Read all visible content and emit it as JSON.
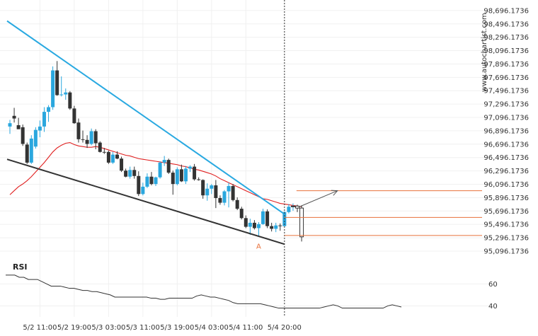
{
  "watermark": "www.autochartist.com",
  "colors": {
    "up": "#2aa7de",
    "down": "#333333",
    "resistance": "#29a9e1",
    "support": "#333333",
    "ma": "#e02020",
    "levels": "#e8703a",
    "forecast": "#555555",
    "rsi": "#333333",
    "grid": "#f0f0f0"
  },
  "chart_data": [
    {
      "type": "candlestick",
      "title": "",
      "ylim": [
        94990,
        98790
      ],
      "grid": true,
      "y_ticks": [
        "98,696.1736",
        "98,496.1736",
        "98,296.1736",
        "98,096.1736",
        "97,896.1736",
        "97,696.1736",
        "97,496.1736",
        "97,296.1736",
        "97,096.1736",
        "96,896.1736",
        "96,696.1736",
        "96,496.1736",
        "96,296.1736",
        "96,096.1736",
        "95,896.1736",
        "95,696.1736",
        "95,496.1736",
        "95,296.1736",
        "95,096.1736"
      ],
      "x_ticks": [
        "5/2 11:00",
        "5/2 19:00",
        "5/3 03:00",
        "5/3 11:00",
        "5/3 19:00",
        "5/4 03:00",
        "5/4 11:00",
        "5/4 20:00"
      ],
      "x_tick_index": [
        7,
        15,
        23,
        31,
        39,
        47,
        55,
        64
      ],
      "breakout_index": 64,
      "pattern_label": "A",
      "pattern_label_index": 58,
      "pattern_label_value": 95240,
      "levels": [
        95600,
        95330,
        96000
      ],
      "forecast": {
        "from_index": 67.5,
        "from_value": 95760,
        "to_index": 79,
        "to_value": 96000
      },
      "resistance": {
        "from_index": 0,
        "from_value": 98540,
        "to_index": 64,
        "to_value": 95650
      },
      "support": {
        "from_index": 0,
        "from_value": 96470,
        "to_index": 64,
        "to_value": 95200
      },
      "candles": [
        {
          "o": 96960,
          "h": 97060,
          "l": 96850,
          "c": 97010
        },
        {
          "o": 97120,
          "h": 97240,
          "l": 97020,
          "c": 97080
        },
        {
          "o": 96980,
          "h": 97090,
          "l": 96950,
          "c": 96920
        },
        {
          "o": 96950,
          "h": 96990,
          "l": 96670,
          "c": 96700
        },
        {
          "o": 96690,
          "h": 96720,
          "l": 96400,
          "c": 96420
        },
        {
          "o": 96420,
          "h": 96830,
          "l": 96400,
          "c": 96780
        },
        {
          "o": 96660,
          "h": 96950,
          "l": 96630,
          "c": 96910
        },
        {
          "o": 96900,
          "h": 97050,
          "l": 96800,
          "c": 96960
        },
        {
          "o": 96960,
          "h": 97250,
          "l": 96880,
          "c": 97180
        },
        {
          "o": 97180,
          "h": 97280,
          "l": 97030,
          "c": 97250
        },
        {
          "o": 97250,
          "h": 97860,
          "l": 97210,
          "c": 97800
        },
        {
          "o": 97800,
          "h": 97940,
          "l": 97420,
          "c": 97430
        },
        {
          "o": 97430,
          "h": 97710,
          "l": 97410,
          "c": 97440
        },
        {
          "o": 97440,
          "h": 97530,
          "l": 97360,
          "c": 97470
        },
        {
          "o": 97470,
          "h": 97490,
          "l": 97210,
          "c": 97230
        },
        {
          "o": 97230,
          "h": 97270,
          "l": 97000,
          "c": 97010
        },
        {
          "o": 97020,
          "h": 97080,
          "l": 96720,
          "c": 96770
        },
        {
          "o": 96770,
          "h": 96900,
          "l": 96720,
          "c": 96760
        },
        {
          "o": 96760,
          "h": 96830,
          "l": 96640,
          "c": 96700
        },
        {
          "o": 96700,
          "h": 96930,
          "l": 96680,
          "c": 96890
        },
        {
          "o": 96890,
          "h": 96920,
          "l": 96620,
          "c": 96710
        },
        {
          "o": 96720,
          "h": 96740,
          "l": 96570,
          "c": 96580
        },
        {
          "o": 96580,
          "h": 96640,
          "l": 96550,
          "c": 96570
        },
        {
          "o": 96580,
          "h": 96600,
          "l": 96400,
          "c": 96420
        },
        {
          "o": 96420,
          "h": 96580,
          "l": 96400,
          "c": 96540
        },
        {
          "o": 96540,
          "h": 96590,
          "l": 96470,
          "c": 96480
        },
        {
          "o": 96480,
          "h": 96510,
          "l": 96280,
          "c": 96300
        },
        {
          "o": 96300,
          "h": 96330,
          "l": 96200,
          "c": 96210
        },
        {
          "o": 96210,
          "h": 96360,
          "l": 96180,
          "c": 96310
        },
        {
          "o": 96310,
          "h": 96360,
          "l": 96180,
          "c": 96220
        },
        {
          "o": 96220,
          "h": 96290,
          "l": 95920,
          "c": 95950
        },
        {
          "o": 95950,
          "h": 96120,
          "l": 95930,
          "c": 96060
        },
        {
          "o": 96060,
          "h": 96260,
          "l": 96040,
          "c": 96210
        },
        {
          "o": 96210,
          "h": 96280,
          "l": 96080,
          "c": 96100
        },
        {
          "o": 96100,
          "h": 96210,
          "l": 96070,
          "c": 96200
        },
        {
          "o": 96200,
          "h": 96440,
          "l": 96180,
          "c": 96420
        },
        {
          "o": 96420,
          "h": 96520,
          "l": 96370,
          "c": 96460
        },
        {
          "o": 96460,
          "h": 96480,
          "l": 96250,
          "c": 96270
        },
        {
          "o": 96270,
          "h": 96300,
          "l": 95940,
          "c": 96100
        },
        {
          "o": 96100,
          "h": 96350,
          "l": 96080,
          "c": 96320
        },
        {
          "o": 96320,
          "h": 96390,
          "l": 96130,
          "c": 96140
        },
        {
          "o": 96140,
          "h": 96370,
          "l": 96100,
          "c": 96330
        },
        {
          "o": 96330,
          "h": 96380,
          "l": 96280,
          "c": 96360
        },
        {
          "o": 96360,
          "h": 96400,
          "l": 96150,
          "c": 96170
        },
        {
          "o": 96170,
          "h": 96200,
          "l": 96150,
          "c": 96160
        },
        {
          "o": 96160,
          "h": 96170,
          "l": 95880,
          "c": 95930
        },
        {
          "o": 95930,
          "h": 96110,
          "l": 95850,
          "c": 96030
        },
        {
          "o": 96030,
          "h": 96100,
          "l": 95950,
          "c": 96080
        },
        {
          "o": 96080,
          "h": 96160,
          "l": 95740,
          "c": 95890
        },
        {
          "o": 95890,
          "h": 95930,
          "l": 95790,
          "c": 95820
        },
        {
          "o": 95820,
          "h": 96010,
          "l": 95780,
          "c": 95990
        },
        {
          "o": 95990,
          "h": 96120,
          "l": 95750,
          "c": 96070
        },
        {
          "o": 96070,
          "h": 96100,
          "l": 95840,
          "c": 95860
        },
        {
          "o": 95860,
          "h": 95900,
          "l": 95710,
          "c": 95730
        },
        {
          "o": 95730,
          "h": 95760,
          "l": 95570,
          "c": 95590
        },
        {
          "o": 95590,
          "h": 95630,
          "l": 95440,
          "c": 95460
        },
        {
          "o": 95460,
          "h": 95580,
          "l": 95340,
          "c": 95520
        },
        {
          "o": 95520,
          "h": 95560,
          "l": 95420,
          "c": 95440
        },
        {
          "o": 95440,
          "h": 95530,
          "l": 95320,
          "c": 95500
        },
        {
          "o": 95500,
          "h": 95730,
          "l": 95490,
          "c": 95690
        },
        {
          "o": 95690,
          "h": 95720,
          "l": 95440,
          "c": 95470
        },
        {
          "o": 95470,
          "h": 95520,
          "l": 95390,
          "c": 95430
        },
        {
          "o": 95430,
          "h": 95520,
          "l": 95380,
          "c": 95480
        },
        {
          "o": 95480,
          "h": 95510,
          "l": 95400,
          "c": 95470
        },
        {
          "o": 95470,
          "h": 95690,
          "l": 95460,
          "c": 95680
        },
        {
          "o": 95680,
          "h": 95800,
          "l": 95660,
          "c": 95760
        },
        {
          "o": 95760,
          "h": 95810,
          "l": 95700,
          "c": 95770
        },
        {
          "o": 95770,
          "h": 95790,
          "l": 95680,
          "c": 95740
        },
        {
          "o": 95740,
          "h": 95780,
          "l": 95240,
          "c": 95310
        }
      ],
      "ma": [
        95940,
        96000,
        96060,
        96100,
        96150,
        96210,
        96280,
        96350,
        96420,
        96500,
        96580,
        96640,
        96680,
        96710,
        96720,
        96690,
        96670,
        96660,
        96650,
        96650,
        96660,
        96650,
        96630,
        96610,
        96590,
        96570,
        96550,
        96530,
        96520,
        96500,
        96480,
        96470,
        96460,
        96450,
        96440,
        96430,
        96420,
        96410,
        96400,
        96390,
        96370,
        96360,
        96340,
        96320,
        96310,
        96290,
        96270,
        96250,
        96220,
        96180,
        96150,
        96120,
        96090,
        96060,
        96030,
        96000,
        95970,
        95940,
        95910,
        95880,
        95870,
        95850,
        95830,
        95810,
        95800,
        95790,
        95780,
        95770,
        95760
      ]
    },
    {
      "type": "line",
      "title": "RSI",
      "ylim": [
        30,
        75
      ],
      "y_ticks": [
        "60",
        "40"
      ],
      "y_tick_values": [
        60,
        40
      ],
      "values": [
        68,
        68,
        68,
        66,
        66,
        64,
        64,
        64,
        62,
        60,
        58,
        58,
        58,
        57,
        56,
        56,
        55,
        54,
        54,
        53,
        53,
        52,
        51,
        50,
        48,
        48,
        48,
        48,
        48,
        48,
        48,
        48,
        47,
        47,
        46,
        46,
        47,
        47,
        47,
        47,
        47,
        47,
        49,
        50,
        49,
        48,
        48,
        47,
        46,
        45,
        43,
        42,
        42,
        42,
        42,
        42,
        42,
        41,
        40,
        39,
        38,
        38,
        38,
        38,
        38,
        38,
        38,
        38,
        38,
        38,
        39,
        40,
        41,
        40,
        38,
        38,
        38,
        38,
        38,
        38,
        38,
        38,
        38,
        38,
        40,
        41,
        40,
        39
      ]
    }
  ]
}
